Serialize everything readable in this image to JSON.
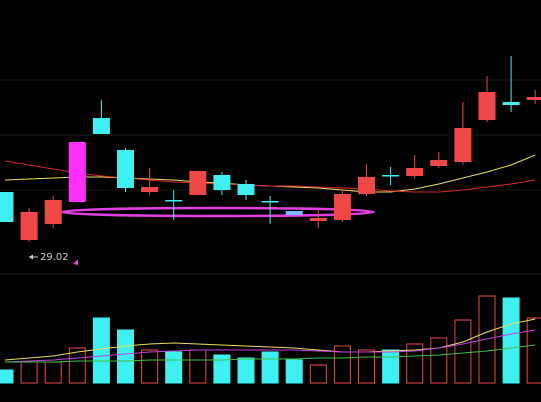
{
  "chart_data": [
    {
      "type": "candlestick",
      "open": [
        30.02,
        29.06,
        29.38,
        29.82,
        31.5,
        30.86,
        30.02,
        29.86,
        29.96,
        30.36,
        30.18,
        29.84,
        29.64,
        29.44,
        29.46,
        29.98,
        30.36,
        30.34,
        30.54,
        30.62,
        31.46,
        31.82,
        31.86
      ],
      "high": [
        30.02,
        29.7,
        29.94,
        31.02,
        31.86,
        30.9,
        30.5,
        30.06,
        30.44,
        30.42,
        30.26,
        29.94,
        29.64,
        29.66,
        30.06,
        30.58,
        30.52,
        30.76,
        30.82,
        31.82,
        32.34,
        32.74,
        32.06
      ],
      "low": [
        29.42,
        29.02,
        29.3,
        29.82,
        31.18,
        30.02,
        29.96,
        29.46,
        29.96,
        29.96,
        29.86,
        29.38,
        29.56,
        29.3,
        29.42,
        29.94,
        30.16,
        30.3,
        30.5,
        30.56,
        31.42,
        31.62,
        31.78
      ],
      "close": [
        29.42,
        29.62,
        29.86,
        31.02,
        31.18,
        30.1,
        30.12,
        29.84,
        30.44,
        30.06,
        29.96,
        29.82,
        29.56,
        29.5,
        29.98,
        30.32,
        30.34,
        30.5,
        30.66,
        31.3,
        32.02,
        31.76,
        31.92
      ],
      "colors": [
        "#3ff0f0",
        "#f04848",
        "#f04848",
        "#ff30ff",
        "#3ff0f0",
        "#3ff0f0",
        "#f04848",
        "#3ff0f0",
        "#f04848",
        "#3ff0f0",
        "#3ff0f0",
        "#3ff0f0",
        "#7ab8ff",
        "#f04848",
        "#f04848",
        "#f04848",
        "#3ff0f0",
        "#f04848",
        "#f04848",
        "#f04848",
        "#f04848",
        "#3ff0f0",
        "#f04848"
      ],
      "series": [
        {
          "color": "#e8e060",
          "values": [
            30.26,
            30.28,
            30.3,
            30.32,
            30.32,
            30.3,
            30.28,
            30.26,
            30.22,
            30.2,
            30.16,
            30.14,
            30.12,
            30.1,
            30.06,
            30.02,
            30.02,
            30.08,
            30.18,
            30.3,
            30.42,
            30.56,
            30.76
          ]
        },
        {
          "color": "#d82828",
          "values": [
            30.64,
            30.56,
            30.48,
            30.4,
            30.34,
            30.3,
            30.26,
            30.22,
            30.2,
            30.18,
            30.16,
            30.14,
            30.14,
            30.12,
            30.1,
            30.08,
            30.04,
            30.02,
            30.02,
            30.06,
            30.12,
            30.18,
            30.26
          ]
        }
      ],
      "low_label": "29.02",
      "ylim": [
        28.46,
        33.86
      ]
    },
    {
      "type": "bar",
      "values": [
        13,
        21,
        21,
        35,
        65,
        53,
        33,
        31,
        33,
        28,
        25,
        31,
        23,
        18,
        37,
        33,
        33,
        39,
        45,
        63,
        87,
        85,
        65
      ],
      "colors": [
        "#3ff0f0",
        "#f04848",
        "#f04848",
        "#f04848",
        "#3ff0f0",
        "#3ff0f0",
        "#f04848",
        "#3ff0f0",
        "#f04848",
        "#3ff0f0",
        "#3ff0f0",
        "#3ff0f0",
        "#3ff0f0",
        "#f04848",
        "#f04848",
        "#f04848",
        "#3ff0f0",
        "#f04848",
        "#f04848",
        "#f04848",
        "#f04848",
        "#3ff0f0",
        "#f04848"
      ],
      "series": [
        {
          "color": "#e8e060",
          "values": [
            23,
            25,
            27,
            31,
            34,
            37,
            39,
            40,
            39,
            38,
            37,
            36,
            35,
            33,
            31,
            31,
            32,
            33,
            35,
            41,
            51,
            59,
            64
          ]
        },
        {
          "color": "#c040e0",
          "values": [
            21,
            22,
            23,
            25,
            27,
            29,
            31,
            32,
            33,
            33,
            33,
            33,
            33,
            32,
            31,
            31,
            31,
            32,
            35,
            39,
            44,
            49,
            53
          ]
        },
        {
          "color": "#40c040",
          "values": [
            21,
            21,
            21,
            22,
            22,
            22,
            23,
            23,
            23,
            23,
            24,
            24,
            24,
            25,
            25,
            26,
            26,
            27,
            28,
            30,
            32,
            35,
            38
          ]
        }
      ],
      "ylim": [
        0,
        110
      ]
    }
  ]
}
